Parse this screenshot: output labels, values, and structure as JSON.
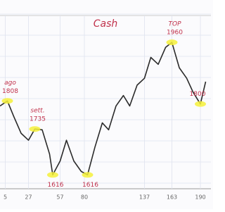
{
  "chart_data": {
    "type": "line",
    "title": "Cash",
    "x": [
      0,
      7,
      13,
      20,
      27,
      33,
      40,
      47,
      50,
      57,
      63,
      70,
      77,
      83,
      90,
      97,
      103,
      110,
      117,
      123,
      130,
      137,
      143,
      150,
      157,
      163,
      170,
      177,
      183,
      190,
      195
    ],
    "series": [
      {
        "color": "#2a2a2a",
        "values": [
          1795,
          1808,
          1768,
          1724,
          1706,
          1735,
          1733,
          1670,
          1616,
          1652,
          1706,
          1652,
          1625,
          1616,
          1688,
          1751,
          1733,
          1795,
          1822,
          1795,
          1849,
          1867,
          1921,
          1903,
          1947,
          1960,
          1894,
          1867,
          1831,
          1800,
          1858
        ]
      }
    ],
    "xlim": [
      0,
      200
    ],
    "xticks": [
      5,
      27,
      57,
      80,
      137,
      163,
      190
    ],
    "ylim": [
      1580,
      2070
    ],
    "grid": true,
    "annotations": [
      {
        "x": 7,
        "y": 1808,
        "note": "ago"
      },
      {
        "x": 33,
        "y": 1735,
        "note": "sett."
      },
      {
        "x": 50,
        "y": 1616
      },
      {
        "x": 83,
        "y": 1616
      },
      {
        "x": 163,
        "y": 1960,
        "note": "TOP"
      },
      {
        "x": 190,
        "y": 1800
      }
    ],
    "highlight_color": "#f4f03a",
    "annotation_color": "#c0304a"
  }
}
